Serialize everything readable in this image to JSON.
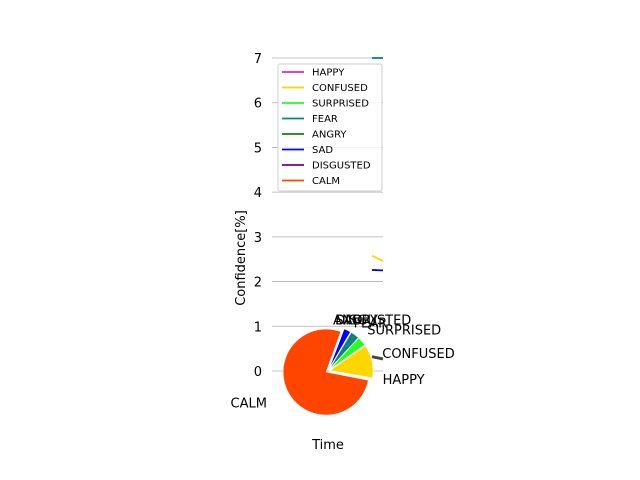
{
  "chart_data": {
    "type": "line",
    "xlabel": "Time",
    "ylabel": "Confidence[%]",
    "ylim": [
      0,
      7
    ],
    "yticks": [
      0,
      1,
      2,
      3,
      4,
      5,
      6,
      7
    ],
    "grid": true,
    "legend": {
      "placement": "upper-center",
      "entries": [
        "HAPPY",
        "CONFUSED",
        "SURPRISED",
        "FEAR",
        "ANGRY",
        "SAD",
        "DISGUSTED",
        "CALM"
      ]
    },
    "colors": {
      "HAPPY": "#dd22dd",
      "CONFUSED": "#ffd700",
      "SURPRISED": "#22ff22",
      "FEAR": "#108080",
      "ANGRY": "#108010",
      "SAD": "#0000ff",
      "DISGUSTED": "#800080",
      "CALM": "#ff4500"
    },
    "visible_series_segments": [
      {
        "name": "CONFUSED",
        "points": [
          [
            0.0,
            2.58
          ],
          [
            1.0,
            2.46
          ]
        ]
      },
      {
        "name": "SAD",
        "points": [
          [
            0.0,
            2.26
          ],
          [
            1.0,
            2.25
          ]
        ]
      },
      {
        "name": "FEAR",
        "points": [
          [
            0.0,
            7.0
          ],
          [
            1.0,
            7.0
          ]
        ]
      }
    ],
    "overlay_pie": {
      "type": "pie",
      "slices": [
        {
          "label": "CALM",
          "value": 77.5
        },
        {
          "label": "HAPPY",
          "value": 0.3
        },
        {
          "label": "CONFUSED",
          "value": 12.5
        },
        {
          "label": "SURPRISED",
          "value": 3.4
        },
        {
          "label": "FEAR",
          "value": 3.3
        },
        {
          "label": "ANGRY",
          "value": 0.2
        },
        {
          "label": "SAD",
          "value": 2.6
        },
        {
          "label": "DISGUSTED",
          "value": 0.2
        }
      ],
      "explode": 0.05
    }
  }
}
